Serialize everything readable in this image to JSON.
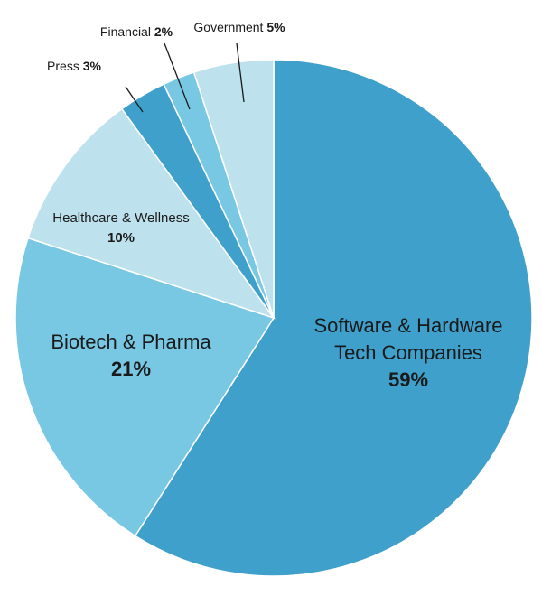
{
  "chart_data": {
    "type": "pie",
    "slices": [
      {
        "name_lines": [
          "Software & Hardware",
          "Tech Companies"
        ],
        "value": 59,
        "value_label": "59%",
        "color": "#40a0cc",
        "label_style": "inside-large"
      },
      {
        "name_lines": [
          "Biotech & Pharma"
        ],
        "value": 21,
        "value_label": "21%",
        "color": "#78c8e4",
        "label_style": "inside-large"
      },
      {
        "name_lines": [
          "Healthcare & Wellness"
        ],
        "value": 10,
        "value_label": "10%",
        "color": "#bde1ed",
        "label_style": "inside-small"
      },
      {
        "name_lines": [
          "Press"
        ],
        "value": 3,
        "value_label": "3%",
        "color": "#40a0cc",
        "label_style": "outside"
      },
      {
        "name_lines": [
          "Financial"
        ],
        "value": 2,
        "value_label": "2%",
        "color": "#78c8e4",
        "label_style": "outside"
      },
      {
        "name_lines": [
          "Government"
        ],
        "value": 5,
        "value_label": "5%",
        "color": "#bde1ed",
        "label_style": "outside"
      }
    ]
  }
}
